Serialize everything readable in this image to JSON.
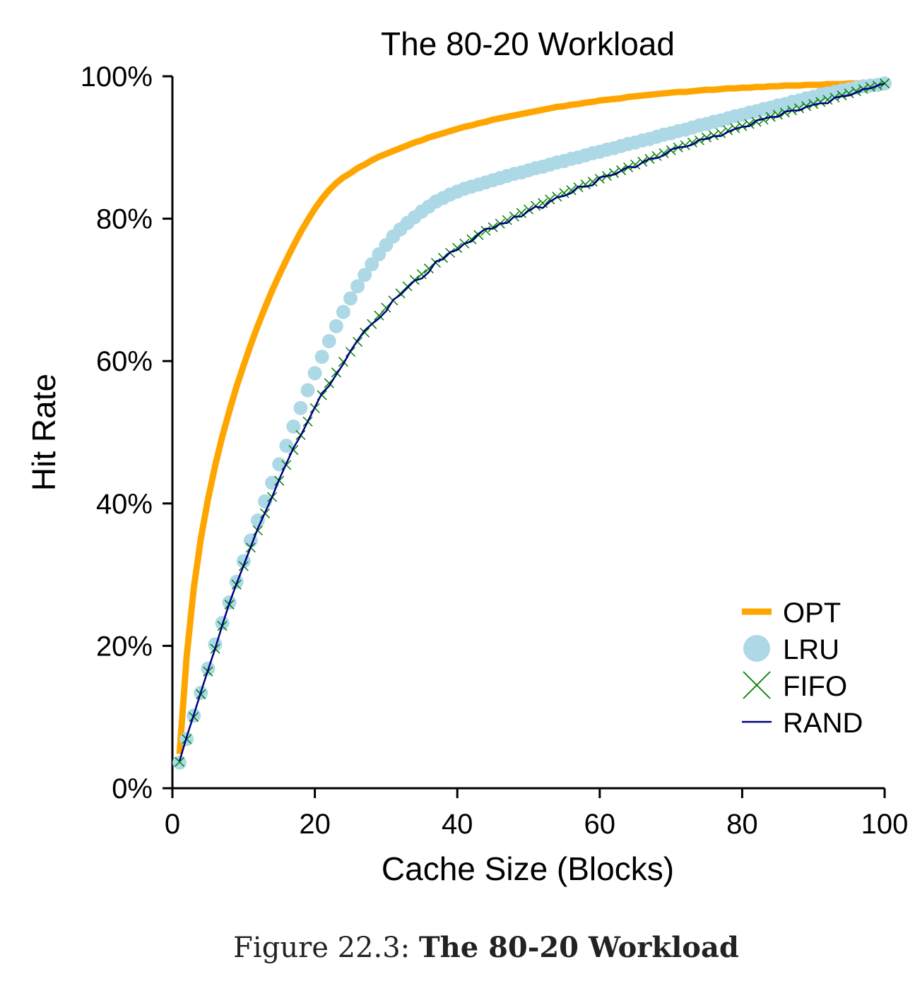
{
  "figure": {
    "caption_label": "Figure 22.3:",
    "caption_title": "The 80-20 Workload"
  },
  "colors": {
    "OPT": "#FFA500",
    "LRU": "#ADD8E6",
    "FIFO": "#008000",
    "RAND": "#000080",
    "axis": "#000000"
  },
  "chart_data": {
    "type": "line",
    "title": "The 80-20 Workload",
    "xlabel": "Cache Size (Blocks)",
    "ylabel": "Hit Rate",
    "xlim": [
      0,
      100
    ],
    "ylim": [
      0,
      100
    ],
    "xticks": [
      0,
      20,
      40,
      60,
      80,
      100
    ],
    "xtick_labels": [
      "0",
      "20",
      "40",
      "60",
      "80",
      "100"
    ],
    "yticks": [
      0,
      20,
      40,
      60,
      80,
      100
    ],
    "ytick_labels": [
      "0%",
      "20%",
      "40%",
      "60%",
      "80%",
      "100%"
    ],
    "grid": false,
    "legend_position": "lower-right",
    "x": [
      1,
      2,
      3,
      4,
      5,
      6,
      7,
      8,
      9,
      10,
      11,
      12,
      13,
      14,
      15,
      16,
      17,
      18,
      19,
      20,
      21,
      22,
      23,
      24,
      25,
      26,
      27,
      28,
      29,
      30,
      31,
      32,
      33,
      34,
      35,
      36,
      37,
      38,
      39,
      40,
      41,
      42,
      43,
      44,
      45,
      46,
      47,
      48,
      49,
      50,
      51,
      52,
      53,
      54,
      55,
      56,
      57,
      58,
      59,
      60,
      61,
      62,
      63,
      64,
      65,
      66,
      67,
      68,
      69,
      70,
      71,
      72,
      73,
      74,
      75,
      76,
      77,
      78,
      79,
      80,
      81,
      82,
      83,
      84,
      85,
      86,
      87,
      88,
      89,
      90,
      91,
      92,
      93,
      94,
      95,
      96,
      97,
      98,
      99,
      100
    ],
    "series": [
      {
        "name": "OPT",
        "marker": "line",
        "values": [
          4.8,
          18.5,
          28.1,
          35.1,
          40.6,
          45.3,
          49.4,
          53.0,
          56.4,
          59.4,
          62.3,
          65.0,
          67.5,
          69.9,
          72.1,
          74.2,
          76.2,
          78.1,
          79.8,
          81.4,
          82.8,
          84.0,
          85.0,
          85.8,
          86.4,
          87.1,
          87.6,
          88.2,
          88.7,
          89.1,
          89.5,
          89.9,
          90.3,
          90.7,
          91.0,
          91.4,
          91.7,
          92.0,
          92.3,
          92.6,
          92.9,
          93.1,
          93.4,
          93.6,
          93.9,
          94.1,
          94.3,
          94.5,
          94.7,
          94.9,
          95.1,
          95.3,
          95.5,
          95.7,
          95.8,
          96.0,
          96.1,
          96.3,
          96.4,
          96.6,
          96.7,
          96.8,
          96.9,
          97.1,
          97.2,
          97.3,
          97.4,
          97.5,
          97.6,
          97.7,
          97.8,
          97.8,
          97.9,
          98.0,
          98.1,
          98.1,
          98.2,
          98.3,
          98.3,
          98.4,
          98.4,
          98.5,
          98.5,
          98.6,
          98.6,
          98.7,
          98.7,
          98.7,
          98.8,
          98.8,
          98.8,
          98.9,
          98.9,
          98.9,
          99.0,
          99.0,
          99.0,
          99.0,
          99.0,
          99.0
        ]
      },
      {
        "name": "LRU",
        "marker": "circle",
        "values": [
          3.6,
          6.9,
          10.2,
          13.4,
          16.8,
          20.2,
          23.2,
          26.1,
          29.0,
          31.9,
          34.8,
          37.6,
          40.3,
          42.9,
          45.5,
          48.1,
          50.8,
          53.4,
          55.9,
          58.3,
          60.6,
          62.8,
          64.9,
          66.9,
          68.8,
          70.5,
          72.1,
          73.6,
          75.0,
          76.3,
          77.5,
          78.5,
          79.4,
          80.2,
          81.0,
          81.7,
          82.4,
          82.9,
          83.4,
          83.8,
          84.2,
          84.5,
          84.8,
          85.1,
          85.4,
          85.7,
          86.0,
          86.3,
          86.5,
          86.8,
          87.1,
          87.3,
          87.6,
          87.9,
          88.1,
          88.4,
          88.6,
          88.9,
          89.2,
          89.4,
          89.7,
          89.9,
          90.2,
          90.5,
          90.7,
          91.0,
          91.2,
          91.5,
          91.8,
          92.0,
          92.3,
          92.5,
          92.8,
          93.1,
          93.3,
          93.6,
          93.8,
          94.1,
          94.4,
          94.6,
          94.9,
          95.1,
          95.4,
          95.6,
          95.9,
          96.1,
          96.4,
          96.6,
          96.9,
          97.1,
          97.4,
          97.6,
          97.8,
          98.0,
          98.2,
          98.4,
          98.6,
          98.7,
          98.8,
          99.0
        ]
      },
      {
        "name": "FIFO",
        "marker": "x",
        "values": [
          3.7,
          6.9,
          10.0,
          13.2,
          16.4,
          19.6,
          22.8,
          25.8,
          28.6,
          31.2,
          33.8,
          36.2,
          38.6,
          40.9,
          43.2,
          45.4,
          47.5,
          49.6,
          51.5,
          53.4,
          55.2,
          56.9,
          58.4,
          59.9,
          61.3,
          62.7,
          64.0,
          65.2,
          66.4,
          67.5,
          68.5,
          69.5,
          70.5,
          71.4,
          72.2,
          73.0,
          73.8,
          74.5,
          75.2,
          75.9,
          76.5,
          77.1,
          77.7,
          78.3,
          78.8,
          79.3,
          79.8,
          80.3,
          80.8,
          81.3,
          81.8,
          82.2,
          82.7,
          83.1,
          83.6,
          84.0,
          84.4,
          84.8,
          85.2,
          85.6,
          86.0,
          86.4,
          86.8,
          87.2,
          87.6,
          88.0,
          88.4,
          88.8,
          89.2,
          89.6,
          90.0,
          90.3,
          90.7,
          91.0,
          91.4,
          91.7,
          92.0,
          92.4,
          92.7,
          93.0,
          93.3,
          93.6,
          93.9,
          94.3,
          94.6,
          94.9,
          95.2,
          95.5,
          95.8,
          96.1,
          96.4,
          96.7,
          97.0,
          97.3,
          97.6,
          97.9,
          98.2,
          98.5,
          98.7,
          99.0
        ]
      },
      {
        "name": "RAND",
        "marker": "line",
        "values": [
          3.8,
          7.2,
          10.3,
          13.5,
          16.6,
          19.6,
          22.9,
          26.0,
          28.7,
          31.3,
          33.9,
          36.5,
          38.7,
          40.9,
          43.4,
          45.6,
          47.8,
          49.5,
          51.5,
          53.5,
          55.5,
          56.5,
          58.1,
          59.6,
          61.4,
          62.9,
          64.3,
          65.2,
          66.0,
          67.0,
          68.6,
          69.3,
          70.3,
          71.3,
          71.6,
          72.5,
          74.0,
          74.3,
          75.3,
          75.6,
          76.5,
          76.8,
          77.9,
          78.6,
          78.6,
          79.3,
          79.4,
          80.3,
          80.3,
          81.1,
          81.7,
          81.5,
          82.4,
          83.0,
          83.2,
          83.6,
          84.5,
          84.5,
          84.7,
          85.8,
          86.0,
          86.2,
          86.7,
          87.3,
          87.2,
          87.9,
          88.4,
          88.5,
          88.9,
          89.7,
          90.0,
          90.1,
          90.4,
          91.1,
          91.2,
          91.6,
          91.6,
          92.2,
          92.6,
          92.9,
          93.0,
          93.8,
          94.0,
          94.3,
          94.3,
          95.0,
          95.2,
          95.2,
          95.7,
          96.0,
          96.2,
          96.2,
          97.0,
          97.2,
          97.3,
          97.7,
          98.2,
          98.3,
          98.7,
          99.0
        ]
      }
    ]
  }
}
